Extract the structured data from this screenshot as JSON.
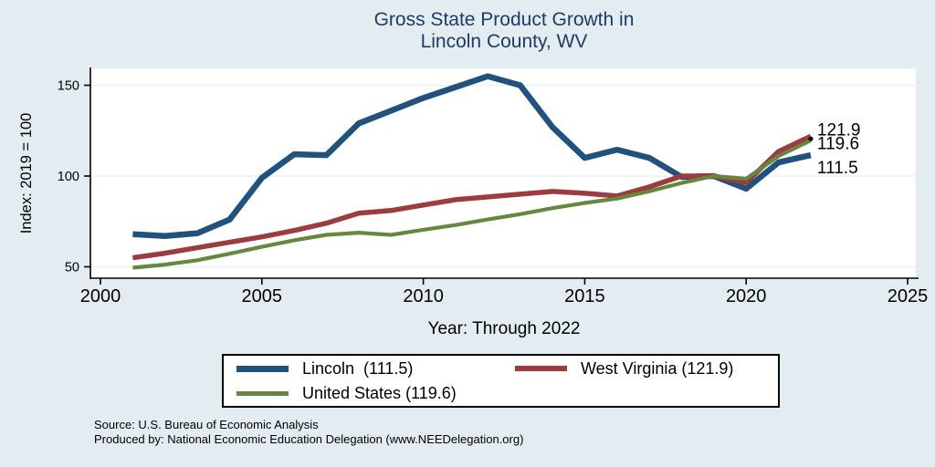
{
  "title": {
    "line1": "Gross State Product Growth in",
    "line2": "Lincoln County, WV"
  },
  "chart_data": {
    "type": "line",
    "title": "Gross State Product Growth in Lincoln County, WV",
    "xlabel": "Year: Through 2022",
    "ylabel": "Index: 2019 = 100",
    "x": [
      2001,
      2002,
      2003,
      2004,
      2005,
      2006,
      2007,
      2008,
      2009,
      2010,
      2011,
      2012,
      2013,
      2014,
      2015,
      2016,
      2017,
      2018,
      2019,
      2020,
      2021,
      2022
    ],
    "series": [
      {
        "name": "Lincoln",
        "color": "#21527d",
        "end_label": "111.5",
        "values": [
          68,
          67,
          68.5,
          76,
          99,
          112,
          111.5,
          129,
          136,
          143,
          149,
          155,
          150,
          127,
          110,
          114.5,
          110,
          99.5,
          100,
          93,
          107.5,
          111.5
        ]
      },
      {
        "name": "West Virginia",
        "color": "#9c3c40",
        "end_label": "121.9",
        "values": [
          55,
          57.5,
          60.5,
          63.5,
          66.5,
          70,
          74,
          79.5,
          81,
          84,
          87,
          88.5,
          90,
          91.5,
          90.5,
          89,
          94,
          100,
          100,
          96.5,
          113.5,
          121.9
        ]
      },
      {
        "name": "United States",
        "color": "#66883e",
        "end_label": "119.6",
        "values": [
          49.5,
          51.2,
          53.6,
          57.2,
          61,
          64.6,
          67.6,
          68.8,
          67.6,
          70.4,
          73,
          76.1,
          79,
          82.3,
          85.2,
          87.6,
          91.6,
          96.2,
          100,
          98.5,
          111,
          119.6
        ]
      }
    ],
    "x_axis": {
      "range": [
        2000,
        2025
      ],
      "ticks": [
        2000,
        2005,
        2010,
        2015,
        2020,
        2025
      ]
    },
    "y_axis": {
      "range": [
        50,
        150
      ],
      "ticks": [
        50,
        100,
        150
      ]
    },
    "grid": true,
    "legend": {
      "position": "bottom",
      "entries": [
        {
          "label": "Lincoln  (111.5)"
        },
        {
          "label": "West Virginia (121.9)"
        },
        {
          "label": "United States (119.6)"
        }
      ]
    },
    "end_marker": {
      "x": 2022,
      "value": 120.5
    }
  },
  "footer": {
    "source": "Source: U.S. Bureau of Economic Analysis",
    "produced_by": "Produced by: National Economic Education Delegation (www.NEEDelegation.org)"
  },
  "colors": {
    "background": "#e3edf1",
    "plot_background": "#ffffff",
    "gridline": "#e9f1f5",
    "axis": "#000000",
    "title_text": "#1f3b63"
  }
}
